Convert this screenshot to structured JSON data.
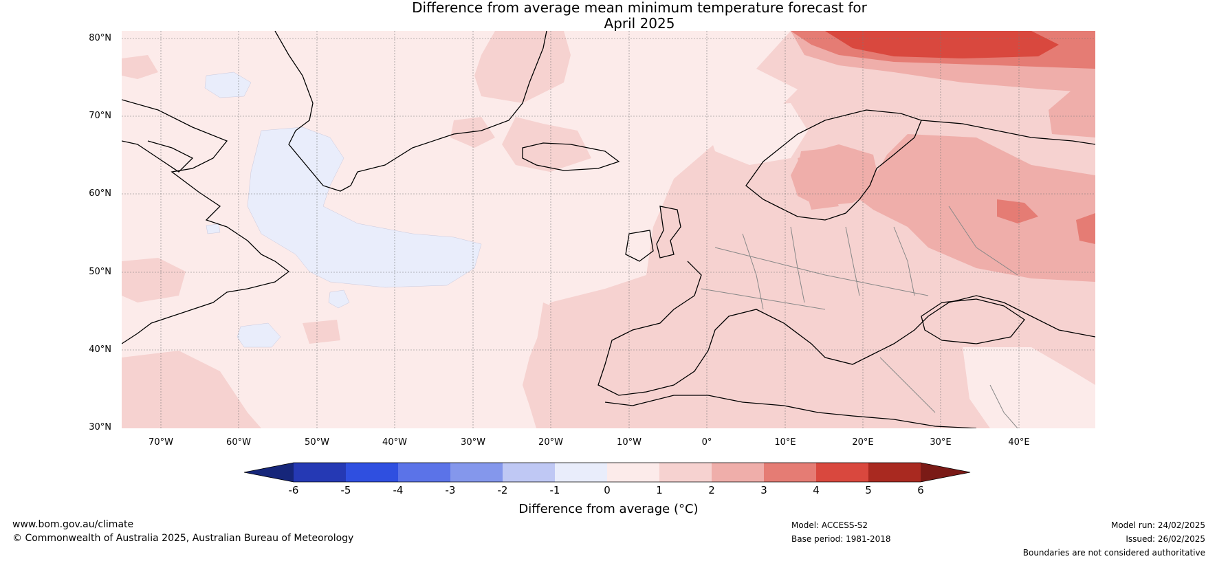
{
  "title": {
    "line1": "Difference from average mean minimum temperature forecast for",
    "line2": "April 2025"
  },
  "axes": {
    "latitudes": [
      "80°N",
      "70°N",
      "60°N",
      "50°N",
      "40°N",
      "30°N"
    ],
    "longitudes": [
      "70°W",
      "60°W",
      "50°W",
      "40°W",
      "30°W",
      "20°W",
      "10°W",
      "0°",
      "10°E",
      "20°E",
      "30°E",
      "40°E"
    ]
  },
  "colorbar": {
    "title": "Difference from average (°C)",
    "ticks": [
      "-6",
      "-5",
      "-4",
      "-3",
      "-2",
      "-1",
      "0",
      "1",
      "2",
      "3",
      "4",
      "5",
      "6"
    ],
    "colors": [
      "#16267a",
      "#2539b4",
      "#2f4fe0",
      "#5b73e8",
      "#8497ec",
      "#bfc8f4",
      "#e9edfb",
      "#fcebea",
      "#f6d2d0",
      "#efaeaa",
      "#e57c74",
      "#d9483e",
      "#a92920",
      "#7a1a16"
    ]
  },
  "footer": {
    "website": "www.bom.gov.au/climate",
    "copyright": "© Commonwealth of Australia 2025, Australian Bureau of Meteorology",
    "model": "Model: ACCESS-S2",
    "base_period": "Base period: 1981-2018",
    "model_run": "Model run: 24/02/2025",
    "issued": "Issued: 26/02/2025",
    "disclaimer": "Boundaries are not considered authoritative"
  }
}
